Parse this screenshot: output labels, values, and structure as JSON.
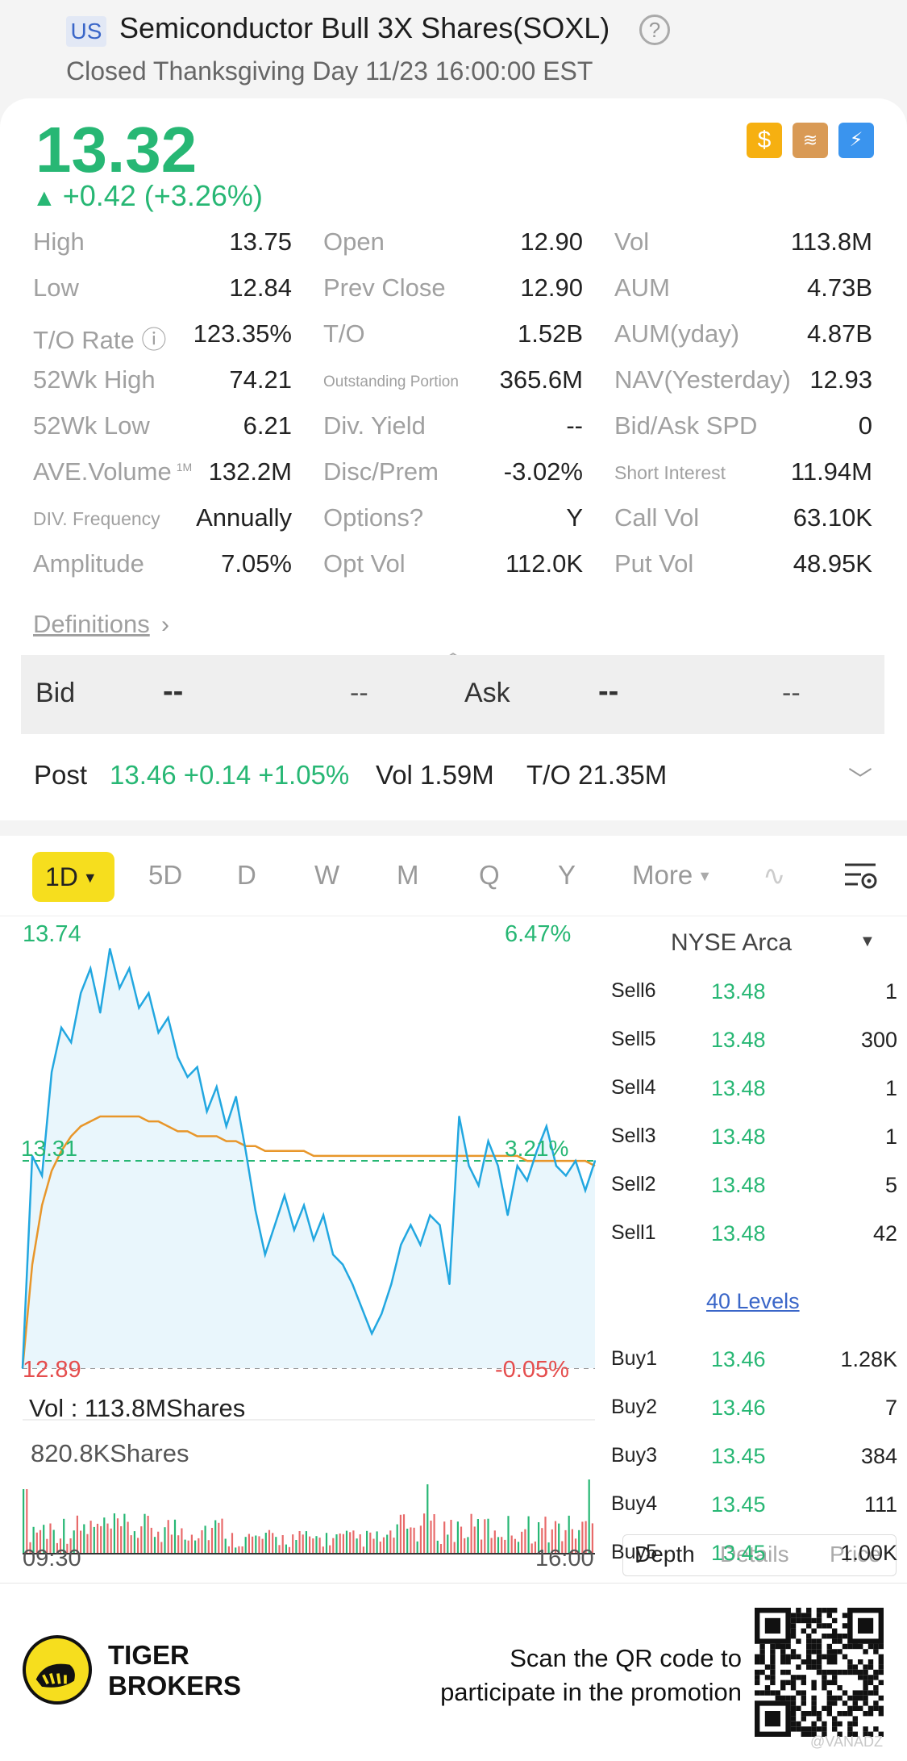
{
  "header": {
    "market": "US",
    "title": "Semiconductor Bull 3X Shares(SOXL)",
    "status": "Closed Thanksgiving Day 11/23 16:00:00 EST"
  },
  "quote": {
    "price": "13.32",
    "change": "+0.42 (+3.26%)",
    "icons": [
      "dollar-icon",
      "layers-icon",
      "flash-icon"
    ]
  },
  "stats": [
    [
      [
        "High",
        "13.75"
      ],
      [
        "Open",
        "12.90"
      ],
      [
        "Vol",
        "113.8M"
      ]
    ],
    [
      [
        "Low",
        "12.84"
      ],
      [
        "Prev Close",
        "12.90"
      ],
      [
        "AUM",
        "4.73B"
      ]
    ],
    [
      [
        "T/O Rate",
        "123.35%"
      ],
      [
        "T/O",
        "1.52B"
      ],
      [
        "AUM(yday)",
        "4.87B"
      ]
    ],
    [
      [
        "52Wk High",
        "74.21"
      ],
      [
        "Outstanding Portion",
        "365.6M"
      ],
      [
        "NAV(Yesterday)",
        "12.93"
      ]
    ],
    [
      [
        "52Wk Low",
        "6.21"
      ],
      [
        "Div. Yield",
        "--"
      ],
      [
        "Bid/Ask SPD",
        "0"
      ]
    ],
    [
      [
        "AVE.Volume",
        "132.2M"
      ],
      [
        "Disc/Prem",
        "-3.02%"
      ],
      [
        "Short Interest",
        "11.94M"
      ]
    ],
    [
      [
        "DIV. Frequency",
        "Annually"
      ],
      [
        "Options?",
        "Y"
      ],
      [
        "Call Vol",
        "63.10K"
      ]
    ],
    [
      [
        "Amplitude",
        "7.05%"
      ],
      [
        "Opt Vol",
        "112.0K"
      ],
      [
        "Put Vol",
        "48.95K"
      ]
    ]
  ],
  "ave_volume_unit": "1M",
  "definitions": "Definitions",
  "bidask": {
    "bid_label": "Bid",
    "bid_price": "--",
    "bid_qty": "--",
    "ask_label": "Ask",
    "ask_price": "--",
    "ask_qty": "--"
  },
  "post": {
    "label": "Post",
    "value": "13.46 +0.14 +1.05%",
    "vol": "Vol 1.59M",
    "turnover": "T/O 21.35M"
  },
  "tabs": [
    "1D",
    "5D",
    "D",
    "W",
    "M",
    "Q",
    "Y",
    "More"
  ],
  "chart_data": {
    "type": "line",
    "title": "",
    "x_start": "09:30",
    "x_end": "16:00",
    "ylim": [
      12.89,
      13.74
    ],
    "y_max_label": "13.74",
    "y_min_label": "12.89",
    "pct_max_label": "6.47%",
    "pct_min_label": "-0.05%",
    "ref_price_label": "13.31",
    "ref_pct_label": "3.21%",
    "series": [
      {
        "values": [
          12.89,
          13.32,
          13.28,
          13.49,
          13.58,
          13.55,
          13.65,
          13.7,
          13.61,
          13.74,
          13.66,
          13.7,
          13.62,
          13.65,
          13.57,
          13.6,
          13.52,
          13.48,
          13.5,
          13.41,
          13.46,
          13.38,
          13.44,
          13.33,
          13.21,
          13.12,
          13.18,
          13.24,
          13.17,
          13.22,
          13.15,
          13.2,
          13.12,
          13.1,
          13.06,
          13.01,
          12.96,
          13.0,
          13.06,
          13.14,
          13.18,
          13.14,
          13.2,
          13.18,
          13.06,
          13.4,
          13.3,
          13.26,
          13.35,
          13.3,
          13.2,
          13.3,
          13.27,
          13.33,
          13.38,
          13.3,
          13.28,
          13.31,
          13.25,
          13.31
        ]
      },
      {
        "values": [
          12.89,
          13.1,
          13.22,
          13.29,
          13.33,
          13.36,
          13.38,
          13.39,
          13.4,
          13.4,
          13.4,
          13.4,
          13.4,
          13.39,
          13.39,
          13.38,
          13.37,
          13.37,
          13.36,
          13.36,
          13.36,
          13.35,
          13.35,
          13.34,
          13.34,
          13.33,
          13.33,
          13.33,
          13.33,
          13.33,
          13.32,
          13.32,
          13.32,
          13.32,
          13.32,
          13.32,
          13.32,
          13.32,
          13.32,
          13.32,
          13.32,
          13.32,
          13.32,
          13.32,
          13.32,
          13.32,
          13.32,
          13.32,
          13.32,
          13.32,
          13.32,
          13.32,
          13.31,
          13.31,
          13.31,
          13.31,
          13.31,
          13.31,
          13.31,
          13.3
        ]
      }
    ],
    "volume_label": "Vol :  113.8MShares",
    "volume_max_label": "820.8KShares"
  },
  "depth": {
    "exchange": "NYSE Arca",
    "sells": [
      [
        "Sell6",
        "13.48",
        "1"
      ],
      [
        "Sell5",
        "13.48",
        "300"
      ],
      [
        "Sell4",
        "13.48",
        "1"
      ],
      [
        "Sell3",
        "13.48",
        "1"
      ],
      [
        "Sell2",
        "13.48",
        "5"
      ],
      [
        "Sell1",
        "13.48",
        "42"
      ]
    ],
    "levels": "40 Levels",
    "buys": [
      [
        "Buy1",
        "13.46",
        "1.28K"
      ],
      [
        "Buy2",
        "13.46",
        "7"
      ],
      [
        "Buy3",
        "13.45",
        "384"
      ],
      [
        "Buy4",
        "13.45",
        "111"
      ],
      [
        "Buy5",
        "13.45",
        "1.00K"
      ]
    ],
    "tabs": [
      "Depth",
      "Details",
      "Price"
    ]
  },
  "footer": {
    "brand_line1": "TIGER",
    "brand_line2": "BROKERS",
    "promo_line1": "Scan the QR code to",
    "promo_line2": "participate in the promotion",
    "watermark": "@VANADZ"
  },
  "colors": {
    "up": "#27b774",
    "down": "#e54d4d",
    "accent": "#f6de1e",
    "line": "#22a7e0",
    "avg_line": "#e8962a"
  }
}
